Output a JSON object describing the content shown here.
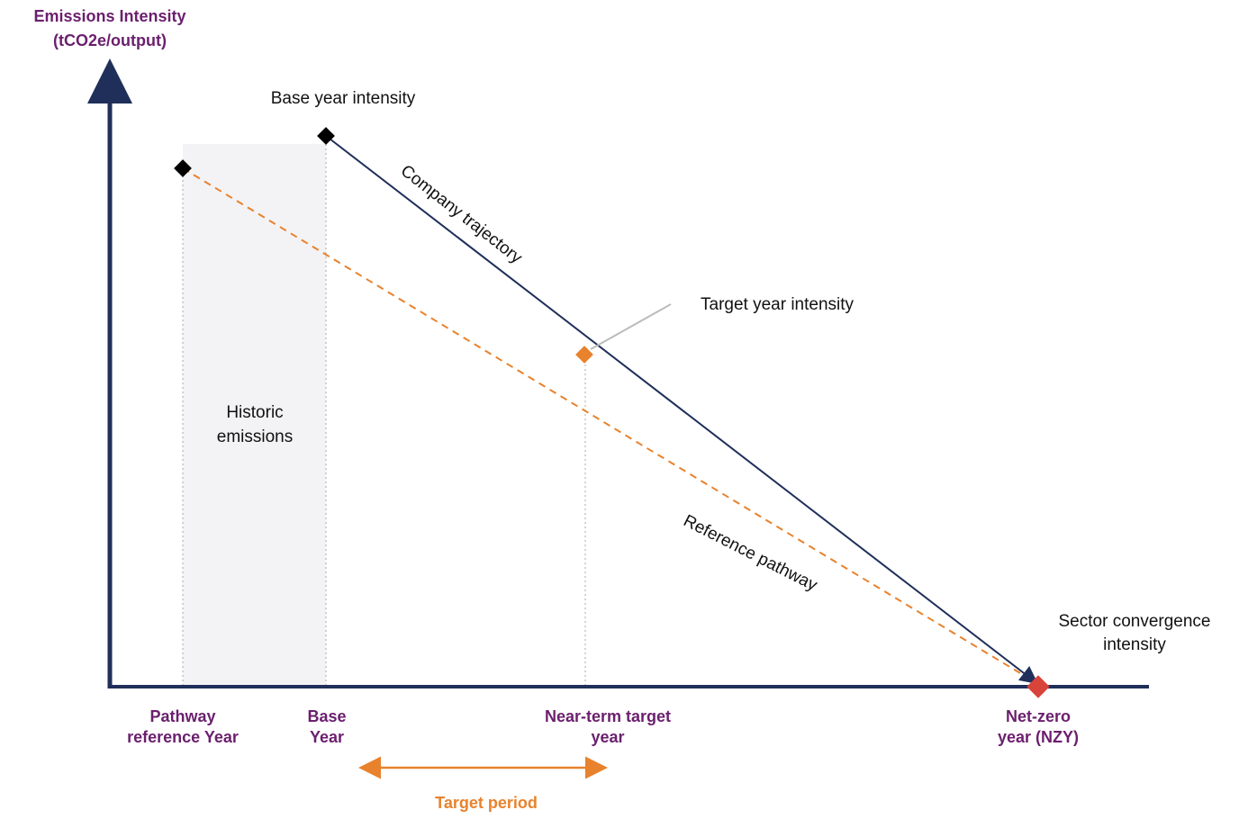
{
  "y_axis_label": {
    "line1": "Emissions Intensity",
    "line2": "(tCO2e/output)"
  },
  "annotations": {
    "base_year_intensity": "Base year intensity",
    "company_trajectory": "Company trajectory",
    "target_year_intensity": "Target year intensity",
    "historic_emissions": [
      "Historic",
      "emissions"
    ],
    "reference_pathway": "Reference pathway",
    "sector_convergence_intensity": [
      "Sector convergence",
      "intensity"
    ]
  },
  "x_labels": [
    [
      "Pathway",
      "reference Year"
    ],
    [
      "Base",
      "Year"
    ],
    [
      "Near-term target",
      "year"
    ],
    [
      "Net-zero",
      "year (NZY)"
    ]
  ],
  "target_period": "Target period"
}
